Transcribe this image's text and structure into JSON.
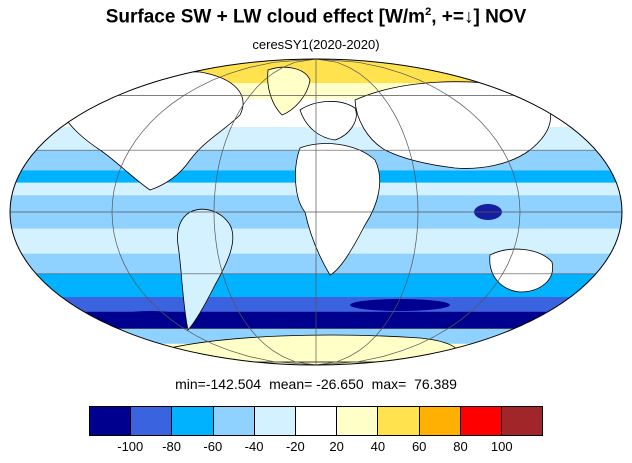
{
  "title": {
    "main": "Surface SW + LW cloud effect [W/m",
    "sup": "2",
    "rest": ", +=↓]  NOV"
  },
  "subtitle": "ceresSY1(2020-2020)",
  "stats": {
    "min": "min=-142.504",
    "mean": "mean= -26.650",
    "max": "max=  76.389"
  },
  "colorbar": {
    "colors": [
      "#00008f",
      "#3a63e0",
      "#00b2ff",
      "#8fd1ff",
      "#d4f1ff",
      "#ffffff",
      "#ffffc8",
      "#ffe24d",
      "#ffb000",
      "#ff0000",
      "#a0262a"
    ],
    "ticks": [
      "-100",
      "-80",
      "-60",
      "-40",
      "-20",
      "20",
      "40",
      "60",
      "80",
      "100"
    ]
  },
  "map": {
    "projection": "Mollweide",
    "zonal_bands": [
      {
        "lat_from": 90,
        "lat_to": 68,
        "color": "#ffe24d"
      },
      {
        "lat_from": 68,
        "lat_to": 58,
        "color": "#ffffc8"
      },
      {
        "lat_from": 58,
        "lat_to": 42,
        "color": "#ffffff"
      },
      {
        "lat_from": 42,
        "lat_to": 30,
        "color": "#d4f1ff"
      },
      {
        "lat_from": 30,
        "lat_to": 20,
        "color": "#8fd1ff"
      },
      {
        "lat_from": 20,
        "lat_to": 14,
        "color": "#00b2ff"
      },
      {
        "lat_from": 14,
        "lat_to": 8,
        "color": "#d4f1ff"
      },
      {
        "lat_from": 8,
        "lat_to": -8,
        "color": "#8fd1ff"
      },
      {
        "lat_from": -8,
        "lat_to": -20,
        "color": "#d4f1ff"
      },
      {
        "lat_from": -20,
        "lat_to": -30,
        "color": "#8fd1ff"
      },
      {
        "lat_from": -30,
        "lat_to": -42,
        "color": "#00b2ff"
      },
      {
        "lat_from": -42,
        "lat_to": -50,
        "color": "#3a63e0"
      },
      {
        "lat_from": -50,
        "lat_to": -60,
        "color": "#00008f"
      },
      {
        "lat_from": -60,
        "lat_to": -70,
        "color": "#8fd1ff"
      },
      {
        "lat_from": -70,
        "lat_to": -90,
        "color": "#ffffc8"
      }
    ]
  }
}
